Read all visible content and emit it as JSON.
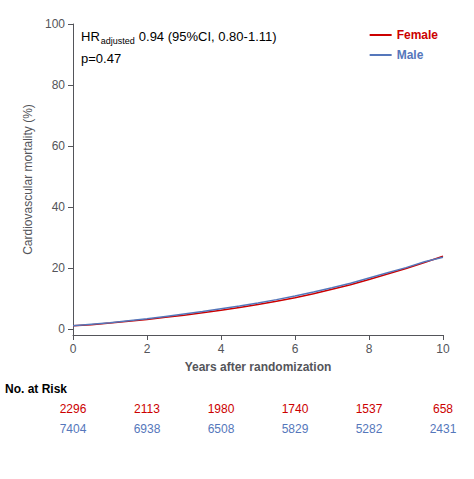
{
  "chart_data": {
    "type": "line",
    "xlabel": "Years after randomization",
    "ylabel": "Cardiovascular mortality (%)",
    "x": [
      0,
      0.5,
      1,
      1.5,
      2,
      2.5,
      3,
      3.5,
      4,
      4.5,
      5,
      5.5,
      6,
      6.5,
      7,
      7.5,
      8,
      8.5,
      9,
      9.5,
      10
    ],
    "series": [
      {
        "name": "Female",
        "color": "#CC0000",
        "values": [
          1.0,
          1.4,
          1.9,
          2.5,
          3.1,
          3.8,
          4.5,
          5.3,
          6.1,
          7.0,
          8.0,
          9.1,
          10.2,
          11.5,
          13.0,
          14.5,
          16.2,
          18.0,
          19.8,
          21.8,
          23.8
        ],
        "at_risk": [
          2296,
          2113,
          1980,
          1740,
          1537,
          658
        ]
      },
      {
        "name": "Male",
        "color": "#5577BB",
        "values": [
          1.0,
          1.5,
          2.0,
          2.7,
          3.3,
          4.1,
          4.9,
          5.7,
          6.6,
          7.5,
          8.5,
          9.6,
          10.8,
          12.1,
          13.5,
          15.0,
          16.7,
          18.4,
          20.1,
          22.0,
          23.5
        ],
        "at_risk": [
          7404,
          6938,
          6508,
          5829,
          5282,
          2431
        ]
      }
    ],
    "xlim": [
      0,
      10
    ],
    "ylim": [
      -2,
      100
    ],
    "xticks": [
      0,
      2,
      4,
      6,
      8,
      10
    ],
    "yticks": [
      0,
      20,
      40,
      60,
      80,
      100
    ],
    "annotations": [
      {
        "text": "HR",
        "subscript": "adjusted",
        "rest": "0.94 (95%CI, 0.80-1.11)"
      },
      {
        "text": "p=0.47"
      }
    ],
    "at_risk_label": "No. at Risk",
    "at_risk_x": [
      0,
      2,
      4,
      6,
      8,
      10
    ],
    "legend": "upper right",
    "grid": false
  }
}
